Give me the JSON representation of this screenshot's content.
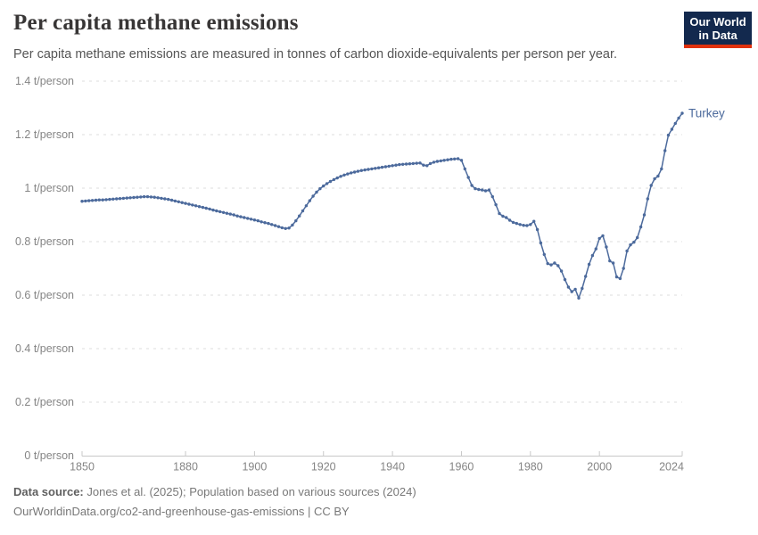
{
  "header": {
    "title": "Per capita methane emissions",
    "subtitle": "Per capita methane emissions are measured in tonnes of carbon dioxide-equivalents per person per year.",
    "logo": {
      "line1": "Our World",
      "line2": "in Data",
      "bg_color": "#13294e",
      "accent_color": "#e0310d"
    }
  },
  "footer": {
    "source_label": "Data source:",
    "source_text": " Jones et al. (2025); Population based on various sources (2024)",
    "note_text": "OurWorldinData.org/co2-and-greenhouse-gas-emissions | CC BY"
  },
  "chart_data": {
    "type": "line",
    "title": "Per capita methane emissions",
    "xlabel": "",
    "ylabel": "t/person",
    "xlim": [
      1850,
      2024
    ],
    "ylim": [
      0,
      1.4
    ],
    "grid": "dashed-horizontal",
    "legend": "end-of-line-label",
    "x_ticks": [
      1850,
      1880,
      1900,
      1920,
      1940,
      1960,
      1980,
      2000,
      2024
    ],
    "y_ticks": [
      {
        "value": 0,
        "label": "0 t/person"
      },
      {
        "value": 0.2,
        "label": "0.2 t/person"
      },
      {
        "value": 0.4,
        "label": "0.4 t/person"
      },
      {
        "value": 0.6,
        "label": "0.6 t/person"
      },
      {
        "value": 0.8,
        "label": "0.8 t/person"
      },
      {
        "value": 1,
        "label": "1 t/person"
      },
      {
        "value": 1.2,
        "label": "1.2 t/person"
      },
      {
        "value": 1.4,
        "label": "1.4 t/person"
      }
    ],
    "series": [
      {
        "name": "Turkey",
        "color": "#4c6a9c",
        "points": [
          [
            1850,
            0.951
          ],
          [
            1851,
            0.952
          ],
          [
            1852,
            0.953
          ],
          [
            1853,
            0.954
          ],
          [
            1854,
            0.955
          ],
          [
            1855,
            0.956
          ],
          [
            1856,
            0.956
          ],
          [
            1857,
            0.957
          ],
          [
            1858,
            0.958
          ],
          [
            1859,
            0.959
          ],
          [
            1860,
            0.96
          ],
          [
            1861,
            0.961
          ],
          [
            1862,
            0.962
          ],
          [
            1863,
            0.963
          ],
          [
            1864,
            0.964
          ],
          [
            1865,
            0.965
          ],
          [
            1866,
            0.966
          ],
          [
            1867,
            0.967
          ],
          [
            1868,
            0.968
          ],
          [
            1869,
            0.968
          ],
          [
            1870,
            0.967
          ],
          [
            1871,
            0.966
          ],
          [
            1872,
            0.964
          ],
          [
            1873,
            0.962
          ],
          [
            1874,
            0.96
          ],
          [
            1875,
            0.958
          ],
          [
            1876,
            0.955
          ],
          [
            1877,
            0.952
          ],
          [
            1878,
            0.949
          ],
          [
            1879,
            0.946
          ],
          [
            1880,
            0.943
          ],
          [
            1881,
            0.94
          ],
          [
            1882,
            0.937
          ],
          [
            1883,
            0.934
          ],
          [
            1884,
            0.931
          ],
          [
            1885,
            0.928
          ],
          [
            1886,
            0.925
          ],
          [
            1887,
            0.922
          ],
          [
            1888,
            0.918
          ],
          [
            1889,
            0.915
          ],
          [
            1890,
            0.912
          ],
          [
            1891,
            0.909
          ],
          [
            1892,
            0.906
          ],
          [
            1893,
            0.903
          ],
          [
            1894,
            0.9
          ],
          [
            1895,
            0.896
          ],
          [
            1896,
            0.893
          ],
          [
            1897,
            0.89
          ],
          [
            1898,
            0.887
          ],
          [
            1899,
            0.884
          ],
          [
            1900,
            0.881
          ],
          [
            1901,
            0.878
          ],
          [
            1902,
            0.874
          ],
          [
            1903,
            0.871
          ],
          [
            1904,
            0.868
          ],
          [
            1905,
            0.864
          ],
          [
            1906,
            0.86
          ],
          [
            1907,
            0.856
          ],
          [
            1908,
            0.852
          ],
          [
            1909,
            0.849
          ],
          [
            1910,
            0.851
          ],
          [
            1911,
            0.862
          ],
          [
            1912,
            0.878
          ],
          [
            1913,
            0.896
          ],
          [
            1914,
            0.915
          ],
          [
            1915,
            0.934
          ],
          [
            1916,
            0.953
          ],
          [
            1917,
            0.97
          ],
          [
            1918,
            0.985
          ],
          [
            1919,
            0.998
          ],
          [
            1920,
            1.008
          ],
          [
            1921,
            1.017
          ],
          [
            1922,
            1.025
          ],
          [
            1923,
            1.032
          ],
          [
            1924,
            1.038
          ],
          [
            1925,
            1.044
          ],
          [
            1926,
            1.049
          ],
          [
            1927,
            1.053
          ],
          [
            1928,
            1.057
          ],
          [
            1929,
            1.06
          ],
          [
            1930,
            1.063
          ],
          [
            1931,
            1.066
          ],
          [
            1932,
            1.068
          ],
          [
            1933,
            1.07
          ],
          [
            1934,
            1.072
          ],
          [
            1935,
            1.074
          ],
          [
            1936,
            1.076
          ],
          [
            1937,
            1.078
          ],
          [
            1938,
            1.08
          ],
          [
            1939,
            1.082
          ],
          [
            1940,
            1.084
          ],
          [
            1941,
            1.086
          ],
          [
            1942,
            1.088
          ],
          [
            1943,
            1.089
          ],
          [
            1944,
            1.09
          ],
          [
            1945,
            1.091
          ],
          [
            1946,
            1.092
          ],
          [
            1947,
            1.093
          ],
          [
            1948,
            1.094
          ],
          [
            1949,
            1.086
          ],
          [
            1950,
            1.084
          ],
          [
            1951,
            1.092
          ],
          [
            1952,
            1.097
          ],
          [
            1953,
            1.1
          ],
          [
            1954,
            1.102
          ],
          [
            1955,
            1.104
          ],
          [
            1956,
            1.106
          ],
          [
            1957,
            1.108
          ],
          [
            1958,
            1.109
          ],
          [
            1959,
            1.11
          ],
          [
            1960,
            1.104
          ],
          [
            1961,
            1.072
          ],
          [
            1962,
            1.04
          ],
          [
            1963,
            1.01
          ],
          [
            1964,
            0.998
          ],
          [
            1965,
            0.995
          ],
          [
            1966,
            0.993
          ],
          [
            1967,
            0.99
          ],
          [
            1968,
            0.993
          ],
          [
            1969,
            0.968
          ],
          [
            1970,
            0.938
          ],
          [
            1971,
            0.905
          ],
          [
            1972,
            0.895
          ],
          [
            1973,
            0.89
          ],
          [
            1974,
            0.88
          ],
          [
            1975,
            0.872
          ],
          [
            1976,
            0.868
          ],
          [
            1977,
            0.864
          ],
          [
            1978,
            0.861
          ],
          [
            1979,
            0.86
          ],
          [
            1980,
            0.864
          ],
          [
            1981,
            0.876
          ],
          [
            1982,
            0.845
          ],
          [
            1983,
            0.795
          ],
          [
            1984,
            0.752
          ],
          [
            1985,
            0.718
          ],
          [
            1986,
            0.713
          ],
          [
            1987,
            0.72
          ],
          [
            1988,
            0.71
          ],
          [
            1989,
            0.69
          ],
          [
            1990,
            0.658
          ],
          [
            1991,
            0.63
          ],
          [
            1992,
            0.613
          ],
          [
            1993,
            0.622
          ],
          [
            1994,
            0.589
          ],
          [
            1995,
            0.625
          ],
          [
            1996,
            0.67
          ],
          [
            1997,
            0.715
          ],
          [
            1998,
            0.748
          ],
          [
            1999,
            0.773
          ],
          [
            2000,
            0.812
          ],
          [
            2001,
            0.822
          ],
          [
            2002,
            0.78
          ],
          [
            2003,
            0.728
          ],
          [
            2004,
            0.72
          ],
          [
            2005,
            0.668
          ],
          [
            2006,
            0.662
          ],
          [
            2007,
            0.7
          ],
          [
            2008,
            0.765
          ],
          [
            2009,
            0.788
          ],
          [
            2010,
            0.798
          ],
          [
            2011,
            0.815
          ],
          [
            2012,
            0.855
          ],
          [
            2013,
            0.9
          ],
          [
            2014,
            0.96
          ],
          [
            2015,
            1.01
          ],
          [
            2016,
            1.035
          ],
          [
            2017,
            1.045
          ],
          [
            2018,
            1.072
          ],
          [
            2019,
            1.14
          ],
          [
            2020,
            1.198
          ],
          [
            2021,
            1.22
          ],
          [
            2022,
            1.242
          ],
          [
            2023,
            1.262
          ],
          [
            2024,
            1.28
          ]
        ]
      }
    ]
  }
}
